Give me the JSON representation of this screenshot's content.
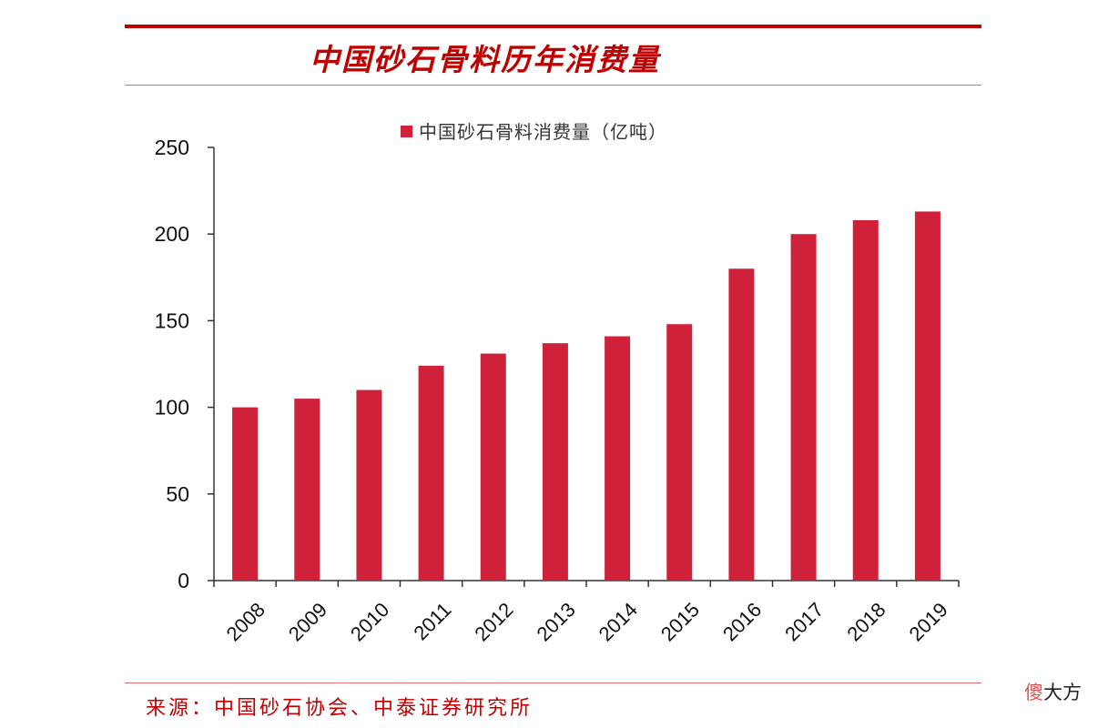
{
  "title": "中国砂石骨料历年消费量",
  "source": "来源：中国砂石协会、中泰证券研究所",
  "watermark": {
    "accent": "傻",
    "rest": "大方"
  },
  "colors": {
    "bar": "#d0213a",
    "accent_red": "#c00000",
    "axis": "#333333"
  },
  "chart_data": {
    "type": "bar",
    "categories": [
      "2008",
      "2009",
      "2010",
      "2011",
      "2012",
      "2013",
      "2014",
      "2015",
      "2016",
      "2017",
      "2018",
      "2019"
    ],
    "series": [
      {
        "name": "中国砂石骨料消费量（亿吨）",
        "values": [
          100,
          105,
          110,
          124,
          131,
          137,
          141,
          148,
          180,
          200,
          208,
          213
        ]
      }
    ],
    "ylim": [
      0,
      250
    ],
    "yticks": [
      "0",
      "50",
      "100",
      "150",
      "200",
      "250"
    ],
    "xlabel": "",
    "ylabel": "",
    "legend": "top-center",
    "grid": false
  }
}
